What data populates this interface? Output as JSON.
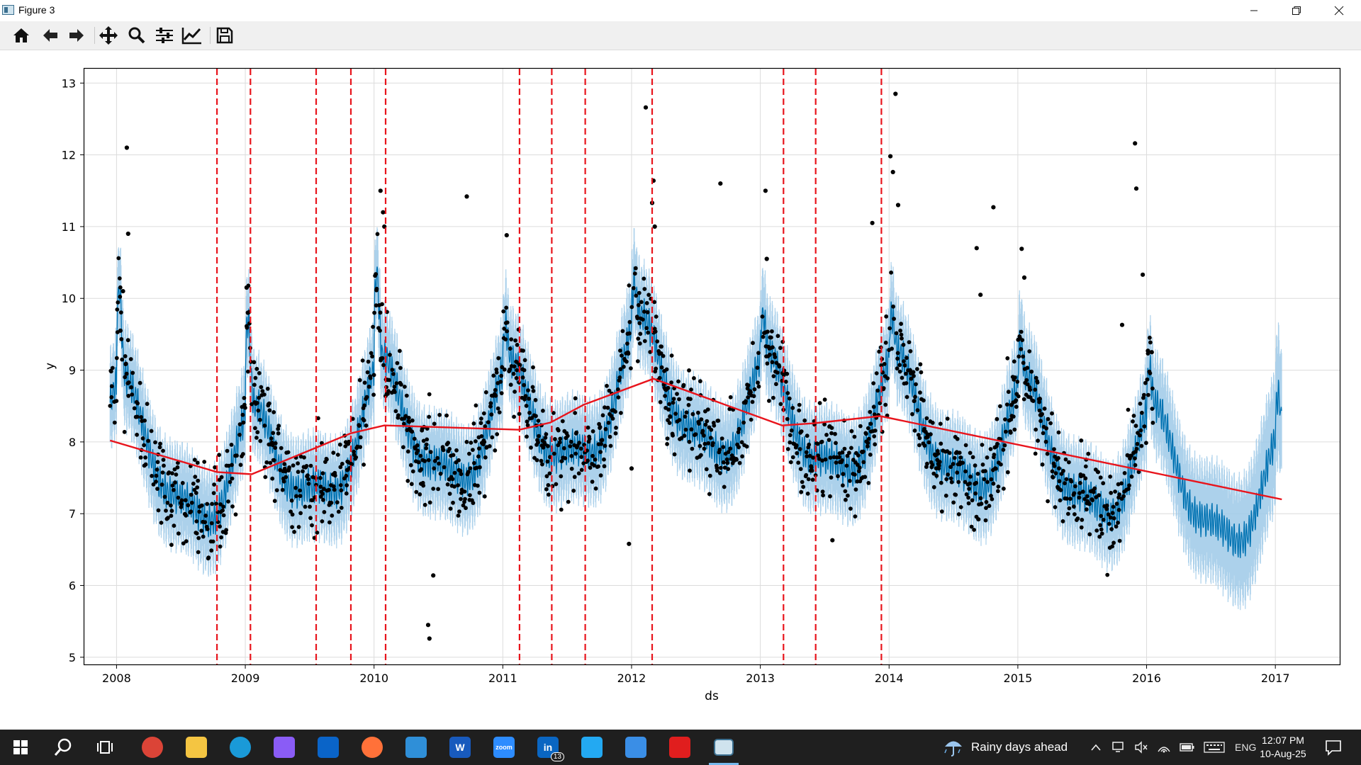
{
  "window": {
    "title": "Figure 3",
    "controls": {
      "minimize": "minimize",
      "maximize": "maximize",
      "close": "close"
    }
  },
  "toolbar": {
    "buttons": [
      {
        "id": "home",
        "icon": "home-icon",
        "label": "Home"
      },
      {
        "id": "back",
        "icon": "back-arrow-icon",
        "label": "Back"
      },
      {
        "id": "forward",
        "icon": "forward-arrow-icon",
        "label": "Forward"
      },
      {
        "id": "pan",
        "icon": "pan-icon",
        "label": "Pan"
      },
      {
        "id": "zoom",
        "icon": "zoom-icon",
        "label": "Zoom"
      },
      {
        "id": "subplots",
        "icon": "subplots-config-icon",
        "label": "Configure subplots"
      },
      {
        "id": "edit",
        "icon": "edit-axes-icon",
        "label": "Edit axis, curve and image parameters"
      },
      {
        "id": "save",
        "icon": "save-icon",
        "label": "Save"
      }
    ]
  },
  "chart_data": {
    "type": "line",
    "xlabel": "ds",
    "ylabel": "y",
    "xlim": [
      2007.75,
      2017.5
    ],
    "ylim": [
      4.9,
      13.2
    ],
    "x_ticks": [
      "2008",
      "2009",
      "2010",
      "2011",
      "2012",
      "2013",
      "2014",
      "2015",
      "2016",
      "2017"
    ],
    "y_ticks": [
      "5",
      "6",
      "7",
      "8",
      "9",
      "10",
      "11",
      "12",
      "13"
    ],
    "grid": true,
    "colors": {
      "forecast": "#0072b2",
      "interval": "#9ec9e8",
      "observed": "#000000",
      "trend": "#e8141c",
      "changepoints": "#e8141c"
    },
    "series": [
      {
        "kind": "trend",
        "x": [
          2007.95,
          2008.78,
          2009.05,
          2009.55,
          2009.82,
          2010.08,
          2011.13,
          2011.37,
          2011.63,
          2012.17,
          2013.17,
          2013.42,
          2013.93,
          2017.05
        ],
        "y": [
          8.02,
          7.58,
          7.55,
          7.92,
          8.12,
          8.23,
          8.17,
          8.27,
          8.52,
          8.88,
          8.23,
          8.26,
          8.36,
          7.2
        ]
      },
      {
        "kind": "changepoints",
        "x": [
          2008.78,
          2009.04,
          2009.55,
          2009.82,
          2010.09,
          2011.13,
          2011.38,
          2011.64,
          2012.16,
          2013.18,
          2013.43,
          2013.94
        ]
      },
      {
        "kind": "observed_outliers",
        "x": [
          2008.08,
          2008.09,
          2008.05,
          2009.01,
          2009.02,
          2010.05,
          2010.07,
          2010.08,
          2010.72,
          2011.03,
          2011.98,
          2012.11,
          2012.17,
          2012.16,
          2012.18,
          2012.69,
          2013.04,
          2013.05,
          2013.87,
          2014.01,
          2014.03,
          2014.05,
          2014.07,
          2014.68,
          2014.81,
          2014.71,
          2015.03,
          2015.05,
          2015.91,
          2015.92,
          2015.97,
          2016.04,
          2010.42,
          2010.43,
          2010.46,
          2012.0,
          2013.56,
          2016.01,
          2015.81,
          2008.03
        ],
        "y": [
          12.1,
          10.9,
          10.1,
          10.15,
          9.8,
          11.5,
          11.2,
          11.0,
          11.42,
          10.88,
          6.58,
          12.66,
          11.64,
          11.33,
          11.0,
          11.6,
          11.5,
          10.55,
          11.05,
          11.98,
          11.76,
          12.85,
          11.3,
          10.7,
          11.27,
          10.05,
          10.69,
          10.29,
          12.16,
          11.53,
          10.33,
          9.25,
          5.45,
          5.26,
          6.14,
          7.63,
          6.63,
          9.27,
          9.63,
          9.55
        ]
      }
    ],
    "description": "Prophet forecast: black observed points, blue forecast line with light-blue uncertainty band, red piecewise trend and dashed red changepoint lines"
  },
  "taskbar": {
    "apps": [
      {
        "id": "start",
        "icon": "windows-start-icon"
      },
      {
        "id": "search",
        "icon": "search-icon"
      },
      {
        "id": "taskview",
        "icon": "task-view-icon"
      },
      {
        "id": "chrome",
        "icon": "chrome-icon",
        "color": "#db4437"
      },
      {
        "id": "explorer",
        "icon": "folder-icon",
        "color": "#f4c542"
      },
      {
        "id": "edge",
        "icon": "edge-icon",
        "color": "#1a9ad8"
      },
      {
        "id": "copilot",
        "icon": "copilot-icon",
        "color": "#8a5cf6"
      },
      {
        "id": "outlook",
        "icon": "outlook-icon",
        "color": "#0a64c8"
      },
      {
        "id": "firefox",
        "icon": "firefox-icon",
        "color": "#ff7139"
      },
      {
        "id": "photos",
        "icon": "photos-icon",
        "color": "#2f8fd8"
      },
      {
        "id": "word",
        "icon": "word-icon",
        "color": "#185abd",
        "glyph": "W"
      },
      {
        "id": "zoom",
        "icon": "zoom-app-icon",
        "color": "#2d8cff",
        "glyph": "zoom"
      },
      {
        "id": "linkedin",
        "icon": "linkedin-icon",
        "color": "#0a66c2",
        "glyph": "in",
        "badge": "13"
      },
      {
        "id": "vscode",
        "icon": "vscode-icon",
        "color": "#23a9f2"
      },
      {
        "id": "cpanel",
        "icon": "control-panel-icon",
        "color": "#3a8ee6"
      },
      {
        "id": "acrobat",
        "icon": "acrobat-icon",
        "color": "#e01e1e"
      },
      {
        "id": "python-figure",
        "icon": "figure-window-icon",
        "color": "#cfe3ee",
        "active": true
      }
    ],
    "weather": {
      "text": "Rainy days ahead",
      "icon": "umbrella-icon"
    },
    "tray": {
      "language": "ENG"
    },
    "clock": {
      "time": "12:07 PM",
      "date": "10-Aug-25"
    }
  }
}
